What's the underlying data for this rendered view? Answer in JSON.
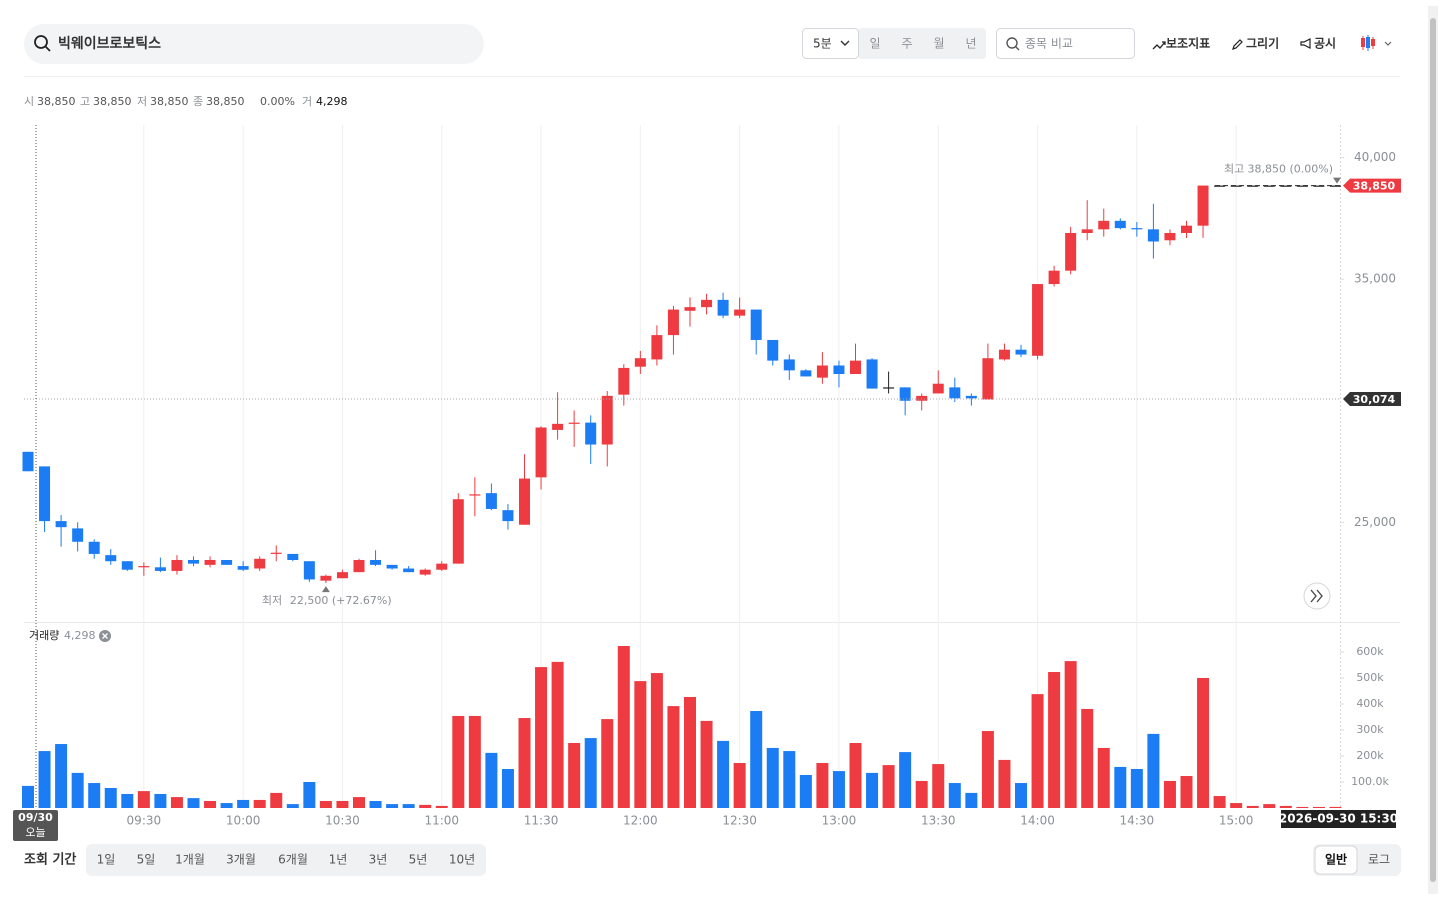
{
  "header": {
    "search": "빅웨이브로보틱스",
    "interval": "5분",
    "periods": [
      "일",
      "주",
      "월",
      "년"
    ],
    "compare_placeholder": "종목 비교",
    "tools": [
      "보조지표",
      "그리기",
      "공시"
    ]
  },
  "ohlc_info": {
    "open": {
      "label": "시",
      "value": "38,850"
    },
    "high": {
      "label": "고",
      "value": "38,850"
    },
    "low": {
      "label": "저",
      "value": "38,850"
    },
    "close": {
      "label": "종",
      "value": "38,850"
    },
    "change": "0.00%",
    "volume": {
      "label": "거",
      "value": "4,298"
    }
  },
  "chart_data": [
    {
      "type": "candlestick",
      "up_color": "#ee3b41",
      "down_color": "#1c7cf4",
      "flat_color": "#222222",
      "open": [
        27900,
        27300,
        25050,
        24750,
        24200,
        23650,
        23400,
        23150,
        23150,
        23000,
        23450,
        23250,
        23450,
        23200,
        23100,
        23700,
        23700,
        23400,
        22600,
        22700,
        22950,
        23450,
        23250,
        23100,
        22850,
        23050,
        23300,
        26100,
        26200,
        25500,
        24900,
        26850,
        28800,
        29050,
        29100,
        28200,
        30250,
        31400,
        31700,
        32700,
        33700,
        33850,
        34150,
        33500,
        33750,
        32500,
        31700,
        31250,
        30950,
        31450,
        31100,
        31700,
        30550,
        30550,
        30000,
        30300,
        30550,
        30200,
        30050,
        31700,
        32100,
        31850,
        34800,
        35350,
        36900,
        37050,
        37400,
        37100,
        37050,
        36600,
        36900,
        37200,
        38850,
        38850,
        38850,
        38850,
        38850,
        38850,
        38850,
        38850
      ],
      "high": [
        27900,
        27300,
        25300,
        25000,
        24300,
        23900,
        23400,
        23350,
        23550,
        23650,
        23600,
        23600,
        23450,
        23400,
        23600,
        24050,
        23700,
        23400,
        22850,
        23050,
        23500,
        23850,
        23250,
        23200,
        23100,
        23400,
        26200,
        26850,
        26600,
        25750,
        27800,
        28950,
        30350,
        29600,
        29400,
        30400,
        31500,
        32050,
        33100,
        33900,
        34250,
        34400,
        34450,
        34250,
        33750,
        32500,
        31900,
        31300,
        32000,
        31650,
        32350,
        31750,
        31200,
        30550,
        30300,
        31250,
        30950,
        30300,
        32350,
        32350,
        32300,
        34800,
        35550,
        37150,
        38250,
        37900,
        37500,
        37350,
        38100,
        37050,
        37400,
        38850,
        38850,
        38850,
        38850,
        38850,
        38850,
        38850,
        38850,
        38850
      ],
      "low": [
        27100,
        24600,
        24000,
        23800,
        23500,
        23250,
        23000,
        22800,
        22950,
        22850,
        23200,
        23150,
        23250,
        23000,
        23000,
        23400,
        23400,
        22550,
        22500,
        22700,
        22950,
        23200,
        23050,
        22950,
        22800,
        23000,
        23300,
        25250,
        25500,
        24700,
        24900,
        26350,
        28400,
        28100,
        27400,
        27300,
        29800,
        31100,
        31450,
        31900,
        33050,
        33550,
        33400,
        33400,
        31900,
        31450,
        30850,
        31000,
        30700,
        30550,
        31100,
        30500,
        30300,
        29400,
        29600,
        30300,
        29950,
        29800,
        30050,
        31650,
        31800,
        31700,
        34700,
        35200,
        36600,
        36750,
        37050,
        36750,
        35850,
        36400,
        36700,
        36700,
        38850,
        38850,
        38850,
        38850,
        38850,
        38850,
        38850,
        38850
      ],
      "close": [
        27100,
        25050,
        24800,
        24200,
        23700,
        23400,
        23050,
        23200,
        23000,
        23450,
        23300,
        23450,
        23250,
        23050,
        23500,
        23750,
        23450,
        22650,
        22800,
        22950,
        23450,
        23250,
        23100,
        22950,
        23050,
        23300,
        25950,
        26150,
        25550,
        25050,
        26800,
        28900,
        29050,
        29100,
        28200,
        30200,
        31350,
        31750,
        32700,
        33750,
        33850,
        34150,
        33500,
        33750,
        32500,
        31650,
        31250,
        31000,
        31450,
        31100,
        31650,
        30500,
        30550,
        30000,
        30200,
        30700,
        30100,
        30100,
        31750,
        32100,
        31900,
        34800,
        35350,
        36900,
        37050,
        37400,
        37100,
        37050,
        36550,
        36900,
        37200,
        38850,
        38850,
        38850,
        38850,
        38850,
        38850,
        38850,
        38850,
        38850
      ],
      "ylim": [
        20900,
        41300
      ],
      "yticks": [
        {
          "value": 25000,
          "label": "25,000"
        },
        {
          "value": 35000,
          "label": "35,000"
        },
        {
          "value": 40000,
          "label": "40,000"
        }
      ],
      "price_markers": [
        {
          "value": 38850,
          "label": "38,850"
        }
      ],
      "annotations": {
        "high": {
          "label": "최고",
          "text": "38,850 (0.00%)"
        },
        "low": {
          "label": "최저",
          "text": "22,500 (+72.67%)"
        }
      }
    },
    {
      "type": "bar",
      "title": "거래량",
      "legend_value": "4,298",
      "categories": [
        null,
        null,
        null,
        null,
        null,
        null,
        null,
        "09:30",
        null,
        null,
        null,
        null,
        null,
        "10:00",
        null,
        null,
        null,
        null,
        null,
        "10:30",
        null,
        null,
        null,
        null,
        null,
        "11:00",
        null,
        null,
        null,
        null,
        null,
        "11:30",
        null,
        null,
        null,
        null,
        null,
        "12:00",
        null,
        null,
        null,
        null,
        null,
        "12:30",
        null,
        null,
        null,
        null,
        null,
        "13:00",
        null,
        null,
        null,
        null,
        null,
        "13:30",
        null,
        null,
        null,
        null,
        null,
        "14:00",
        null,
        null,
        null,
        null,
        null,
        "14:30",
        null,
        null,
        null,
        null,
        null,
        "15:00",
        null,
        null,
        null,
        null,
        null,
        null
      ],
      "values": [
        85000,
        219000,
        246000,
        135000,
        96000,
        77000,
        54000,
        65000,
        54000,
        42000,
        38000,
        27000,
        19000,
        31000,
        31000,
        58000,
        15000,
        100000,
        27000,
        27000,
        42000,
        27000,
        15000,
        15000,
        12000,
        8000,
        354000,
        354000,
        212000,
        150000,
        346000,
        542000,
        562000,
        250000,
        269000,
        342000,
        623000,
        488000,
        519000,
        392000,
        427000,
        335000,
        258000,
        173000,
        373000,
        231000,
        219000,
        127000,
        173000,
        142000,
        250000,
        135000,
        165000,
        215000,
        104000,
        169000,
        96000,
        58000,
        296000,
        185000,
        96000,
        438000,
        523000,
        565000,
        381000,
        231000,
        158000,
        150000,
        285000,
        104000,
        123000,
        500000,
        46000,
        19000,
        8000,
        15000,
        8000,
        4000,
        4000,
        4298
      ],
      "ylim": [
        0,
        700000
      ],
      "yticks": [
        {
          "value": 100000,
          "label": "100.0k"
        },
        {
          "value": 200000,
          "label": "200k"
        },
        {
          "value": 300000,
          "label": "300k"
        },
        {
          "value": 400000,
          "label": "400k"
        },
        {
          "value": 500000,
          "label": "500k"
        },
        {
          "value": 600000,
          "label": "600k"
        }
      ],
      "grid": true
    }
  ],
  "crosshair": {
    "x_label": "09/30",
    "x_sublabel": "오늘",
    "price": {
      "value": 30074,
      "label": "30,074"
    }
  },
  "last_time": "2026-09-30 15:30",
  "footer": {
    "range_label": "조회 기간",
    "ranges": [
      "1일",
      "5일",
      "1개월",
      "3개월",
      "6개월",
      "1년",
      "3년",
      "5년",
      "10년"
    ],
    "scales": [
      "일반",
      "로그"
    ]
  }
}
